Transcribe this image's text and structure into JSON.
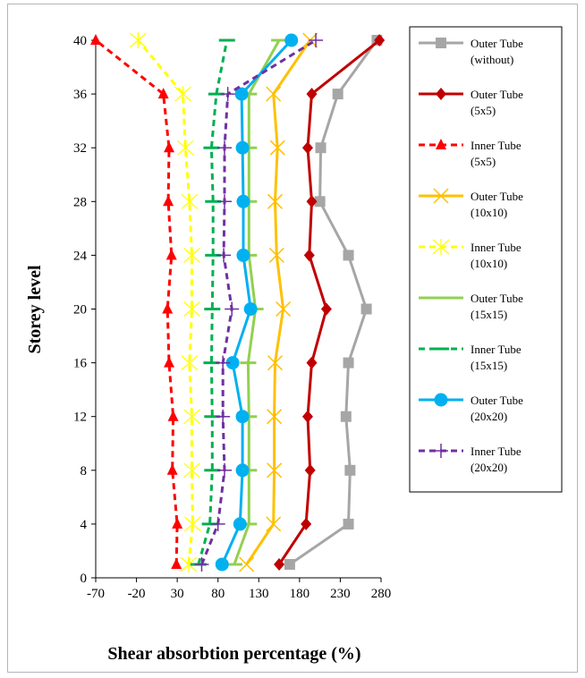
{
  "chart_data": {
    "type": "line",
    "title": "",
    "xlabel": "Shear absorbtion percentage (%)",
    "ylabel": "Storey level",
    "xlim": [
      -70,
      280
    ],
    "ylim": [
      0,
      40
    ],
    "xticks": [
      "-70",
      "-20",
      "30",
      "80",
      "130",
      "180",
      "230",
      "280"
    ],
    "yticks": [
      "0",
      "4",
      "8",
      "12",
      "16",
      "20",
      "24",
      "28",
      "32",
      "36",
      "40"
    ],
    "grid": false,
    "legend_position": "right",
    "series": [
      {
        "name_line1": "Outer Tube",
        "name_line2": "(without)",
        "color": "#a6a6a6",
        "dash": "solid",
        "marker": "square",
        "points": [
          [
            168,
            1
          ],
          [
            240,
            4
          ],
          [
            242,
            8
          ],
          [
            237,
            12
          ],
          [
            240,
            16
          ],
          [
            262,
            20
          ],
          [
            240,
            24
          ],
          [
            205,
            28
          ],
          [
            206,
            32
          ],
          [
            227,
            36
          ],
          [
            275,
            40
          ]
        ]
      },
      {
        "name_line1": "Outer Tube",
        "name_line2": "(5x5)",
        "color": "#c00000",
        "dash": "solid",
        "marker": "diamond",
        "points": [
          [
            155,
            1
          ],
          [
            188,
            4
          ],
          [
            193,
            8
          ],
          [
            190,
            12
          ],
          [
            195,
            16
          ],
          [
            213,
            20
          ],
          [
            192,
            24
          ],
          [
            195,
            28
          ],
          [
            190,
            32
          ],
          [
            195,
            36
          ],
          [
            278,
            40
          ]
        ]
      },
      {
        "name_line1": "Inner Tube",
        "name_line2": "(5x5)",
        "color": "#ff0000",
        "dash": "dashed",
        "marker": "triangle",
        "points": [
          [
            29,
            1
          ],
          [
            30,
            4
          ],
          [
            24,
            8
          ],
          [
            25,
            12
          ],
          [
            20,
            16
          ],
          [
            18,
            20
          ],
          [
            23,
            24
          ],
          [
            19,
            28
          ],
          [
            20,
            32
          ],
          [
            13,
            36
          ],
          [
            -70,
            40
          ]
        ]
      },
      {
        "name_line1": "Outer Tube",
        "name_line2": "(10x10)",
        "color": "#ffc000",
        "dash": "solid",
        "marker": "x",
        "points": [
          [
            115,
            1
          ],
          [
            148,
            4
          ],
          [
            149,
            8
          ],
          [
            149,
            12
          ],
          [
            150,
            16
          ],
          [
            160,
            20
          ],
          [
            152,
            24
          ],
          [
            150,
            28
          ],
          [
            153,
            32
          ],
          [
            148,
            36
          ],
          [
            193,
            40
          ]
        ]
      },
      {
        "name_line1": "Inner Tube",
        "name_line2": "(10x10)",
        "color": "#ffff00",
        "dash": "dashed",
        "marker": "asterisk",
        "points": [
          [
            44,
            1
          ],
          [
            49,
            4
          ],
          [
            48,
            8
          ],
          [
            48,
            12
          ],
          [
            45,
            16
          ],
          [
            48,
            20
          ],
          [
            48,
            24
          ],
          [
            45,
            28
          ],
          [
            40,
            32
          ],
          [
            37,
            36
          ],
          [
            -18,
            40
          ]
        ]
      },
      {
        "name_line1": "Outer Tube",
        "name_line2": "(15x15)",
        "color": "#92d050",
        "dash": "solid",
        "marker": "dash",
        "points": [
          [
            100,
            1
          ],
          [
            118,
            4
          ],
          [
            118,
            8
          ],
          [
            118,
            12
          ],
          [
            117,
            16
          ],
          [
            126,
            20
          ],
          [
            118,
            24
          ],
          [
            118,
            28
          ],
          [
            118,
            32
          ],
          [
            118,
            36
          ],
          [
            155,
            40
          ]
        ]
      },
      {
        "name_line1": "Inner Tube",
        "name_line2": "(15x15)",
        "color": "#00b050",
        "dash": "dashed",
        "marker": "dash",
        "points": [
          [
            56,
            1
          ],
          [
            70,
            4
          ],
          [
            73,
            8
          ],
          [
            73,
            12
          ],
          [
            72,
            16
          ],
          [
            73,
            20
          ],
          [
            74,
            24
          ],
          [
            74,
            28
          ],
          [
            72,
            32
          ],
          [
            78,
            36
          ],
          [
            91,
            40
          ]
        ]
      },
      {
        "name_line1": "Outer Tube",
        "name_line2": "(20x20)",
        "color": "#00b0f0",
        "dash": "solid",
        "marker": "circle",
        "points": [
          [
            85,
            1
          ],
          [
            107,
            4
          ],
          [
            110,
            8
          ],
          [
            110,
            12
          ],
          [
            98,
            16
          ],
          [
            120,
            20
          ],
          [
            111,
            24
          ],
          [
            111,
            28
          ],
          [
            110,
            32
          ],
          [
            109,
            36
          ],
          [
            170,
            40
          ]
        ]
      },
      {
        "name_line1": "Inner Tube",
        "name_line2": "(20x20)",
        "color": "#7030a0",
        "dash": "dashed",
        "marker": "plus",
        "points": [
          [
            60,
            1
          ],
          [
            80,
            4
          ],
          [
            88,
            8
          ],
          [
            86,
            12
          ],
          [
            86,
            16
          ],
          [
            97,
            20
          ],
          [
            87,
            24
          ],
          [
            88,
            28
          ],
          [
            88,
            32
          ],
          [
            92,
            36
          ],
          [
            200,
            40
          ]
        ]
      }
    ]
  }
}
